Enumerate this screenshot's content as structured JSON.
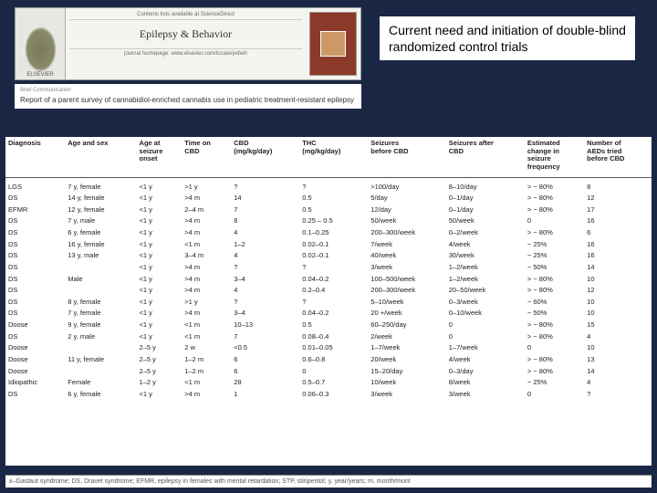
{
  "journal": {
    "publisher": "ELSEVIER",
    "availability": "Contents lists available at ScienceDirect",
    "name": "Epilepsy & Behavior",
    "homepage": "journal homepage: www.elsevier.com/locate/yebeh"
  },
  "paper": {
    "section": "Brief Communication",
    "title": "Report of a parent survey of cannabidiol-enriched cannabis use in pediatric treatment-resistant epilepsy"
  },
  "annotation": "Current need and initiation of double-blind randomized control trials",
  "table": {
    "columns": [
      "Diagnosis",
      "Age and sex",
      "Age at seizure onset",
      "Time on CBD",
      "CBD (mg/kg/day)",
      "THC (mg/kg/day)",
      "Seizures before CBD",
      "Seizures after CBD",
      "Estimated change in seizure frequency",
      "Number of AEDs tried before CBD"
    ],
    "rows": [
      [
        "LGS",
        "7 y, female",
        "<1 y",
        ">1 y",
        "?",
        "?",
        ">100/day",
        "8–10/day",
        "> − 80%",
        "8"
      ],
      [
        "DS",
        "14 y, female",
        "<1 y",
        ">4 m",
        "14",
        "0.5",
        "5/day",
        "0–1/day",
        "> − 80%",
        "12"
      ],
      [
        "EFMR",
        "12 y, female",
        "<1 y",
        "2–4 m",
        "7",
        "0.5",
        "12/day",
        "0–1/day",
        "> − 80%",
        "17"
      ],
      [
        "DS",
        "7 y, male",
        "<1 y",
        ">4 m",
        "8",
        "0.25 – 0.5",
        "50/week",
        "50/week",
        "0",
        "16"
      ],
      [
        "DS",
        "6 y, female",
        "<1 y",
        ">4 m",
        "4",
        "0.1–0.25",
        "200–300/week",
        "0–2/week",
        "> − 80%",
        "6"
      ],
      [
        "DS",
        "16 y, female",
        "<1 y",
        "<1 m",
        "1–2",
        "0.02–0.1",
        "7/week",
        "4/week",
        "− 25%",
        "16"
      ],
      [
        "DS",
        "13 y, male",
        "<1 y",
        "3–4 m",
        "4",
        "0.02–0.1",
        "40/week",
        "30/week",
        "− 25%",
        "16"
      ],
      [
        "DS",
        "",
        "<1 y",
        ">4 m",
        "?",
        "?",
        "3/week",
        "1–2/week",
        "− 50%",
        "14"
      ],
      [
        "DS",
        "Male",
        "<1 y",
        ">4 m",
        "3–4",
        "0.04–0.2",
        "100–500/week",
        "1–2/week",
        "> − 80%",
        "10"
      ],
      [
        "DS",
        "",
        "<1 y",
        ">4 m",
        "4",
        "0.2–0.4",
        "200–300/week",
        "20–50/week",
        "> − 80%",
        "12"
      ],
      [
        "DS",
        "8 y, female",
        "<1 y",
        ">1 y",
        "?",
        "?",
        "5–10/week",
        "0–3/week",
        "− 60%",
        "10"
      ],
      [
        "DS",
        "7 y, female",
        "<1 y",
        ">4 m",
        "3–4",
        "0.04–0.2",
        "20 +/week",
        "0–10/week",
        "− 50%",
        "10"
      ],
      [
        "Doose",
        "9 y, female",
        "<1 y",
        "<1 m",
        "10–13",
        "0.5",
        "60–250/day",
        "0",
        "> − 80%",
        "15"
      ],
      [
        "DS",
        "2 y, male",
        "<1 y",
        "<1 m",
        "7",
        "0.08–0.4",
        "2/week",
        "0",
        "> − 80%",
        "4"
      ],
      [
        "Doose",
        "",
        "2–5 y",
        "2 w",
        "<0.5",
        "0.01–0.05",
        "1–7/week",
        "1–7/week",
        "0",
        "10"
      ],
      [
        "Doose",
        "11 y, female",
        "2–5 y",
        "1–2 m",
        "6",
        "0.6–0.8",
        "20/week",
        "4/week",
        "> − 80%",
        "13"
      ],
      [
        "Doose",
        "",
        "2–5 y",
        "1–2 m",
        "6",
        "0",
        "15–20/day",
        "0–3/day",
        "> − 80%",
        "14"
      ],
      [
        "Idiopathic",
        "Female",
        "1–2 y",
        "<1 m",
        "28",
        "0.5–0.7",
        "10/week",
        "8/week",
        "− 25%",
        "4"
      ],
      [
        "DS",
        "6 y, female",
        "<1 y",
        ">4 m",
        "1",
        "0.06–0.3",
        "3/week",
        "3/week",
        "0",
        "?"
      ]
    ]
  },
  "footnote": "x–Gastaut syndrome; DS, Dravet syndrome; EFMR, epilepsy in females with mental retardation; STP, stiripentol; y, year/years; m, month/mont",
  "colors": {
    "page_bg": "#1a2744",
    "panel_bg": "#ffffff",
    "header_bg": "#f5f5f0",
    "cover_bg": "#8b3a2a"
  }
}
